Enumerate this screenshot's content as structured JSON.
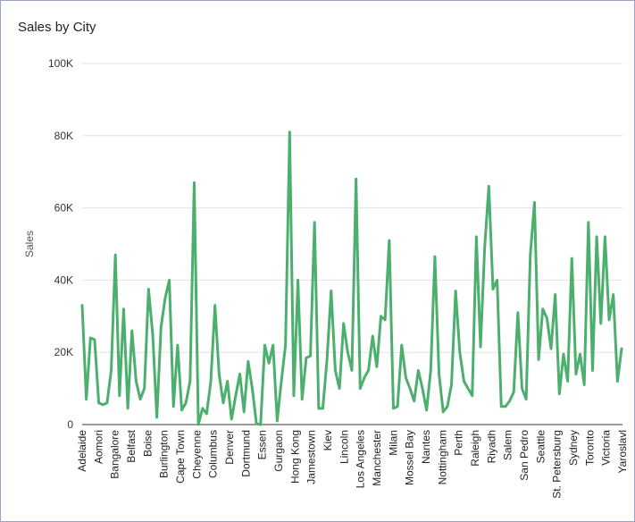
{
  "chart_data": {
    "type": "line",
    "title": "Sales by City",
    "xlabel": "",
    "ylabel": "Sales",
    "ylim": [
      0,
      100000
    ],
    "yticks": [
      {
        "value": 0,
        "label": "0"
      },
      {
        "value": 20000,
        "label": "20K"
      },
      {
        "value": 40000,
        "label": "40K"
      },
      {
        "value": 60000,
        "label": "60K"
      },
      {
        "value": 80000,
        "label": "80K"
      },
      {
        "value": 100000,
        "label": "100K"
      }
    ],
    "grid": true,
    "legend": "none",
    "line_color": "#4caf6e",
    "tick_labels": [
      "Adelaide",
      "Aomori",
      "Bangalore",
      "Belfast",
      "Boise",
      "Burlington",
      "Cape Town",
      "Cheyenne",
      "Columbus",
      "Denver",
      "Dortmund",
      "Essen",
      "Gurgaon",
      "Hong Kong",
      "Jamestown",
      "Kiev",
      "Lincoln",
      "Los Angeles",
      "Manchester",
      "Milan",
      "Mossel Bay",
      "Nantes",
      "Nottingham",
      "Perth",
      "Raleigh",
      "Riyadh",
      "Salem",
      "San Pedro",
      "Seattle",
      "St. Petersburg",
      "Sydney",
      "Toronto",
      "Victoria",
      "Yaroslavl"
    ],
    "values": [
      33000,
      7000,
      24000,
      23500,
      6000,
      5500,
      6000,
      15000,
      47000,
      8000,
      32000,
      4500,
      26000,
      12000,
      7000,
      10000,
      37500,
      25000,
      2000,
      27000,
      35000,
      40000,
      5000,
      22000,
      4000,
      6000,
      12000,
      67000,
      0,
      4500,
      3000,
      12000,
      33000,
      14000,
      6000,
      12000,
      1500,
      8000,
      14000,
      3500,
      17500,
      10000,
      200,
      0,
      22000,
      17000,
      22000,
      1000,
      12000,
      22000,
      81000,
      8000,
      40000,
      7000,
      18500,
      19000,
      56000,
      4500,
      4500,
      18000,
      37000,
      15000,
      10000,
      28000,
      20000,
      15000,
      68000,
      10000,
      13000,
      15000,
      24500,
      16000,
      30000,
      29000,
      51000,
      4500,
      5000,
      22000,
      13000,
      10000,
      6500,
      15000,
      10000,
      4000,
      15000,
      46500,
      14000,
      3500,
      5000,
      11000,
      37000,
      20000,
      12000,
      10000,
      8000,
      52000,
      21500,
      49000,
      66000,
      37500,
      40000,
      5000,
      5000,
      6500,
      9000,
      31000,
      10000,
      7000,
      47000,
      61500,
      18000,
      32000,
      29500,
      21000,
      36000,
      8500,
      19500,
      12000,
      46000,
      14000,
      19500,
      11000,
      56000,
      15000,
      52000,
      28000,
      52000,
      29000,
      36000,
      12000,
      21000
    ]
  }
}
